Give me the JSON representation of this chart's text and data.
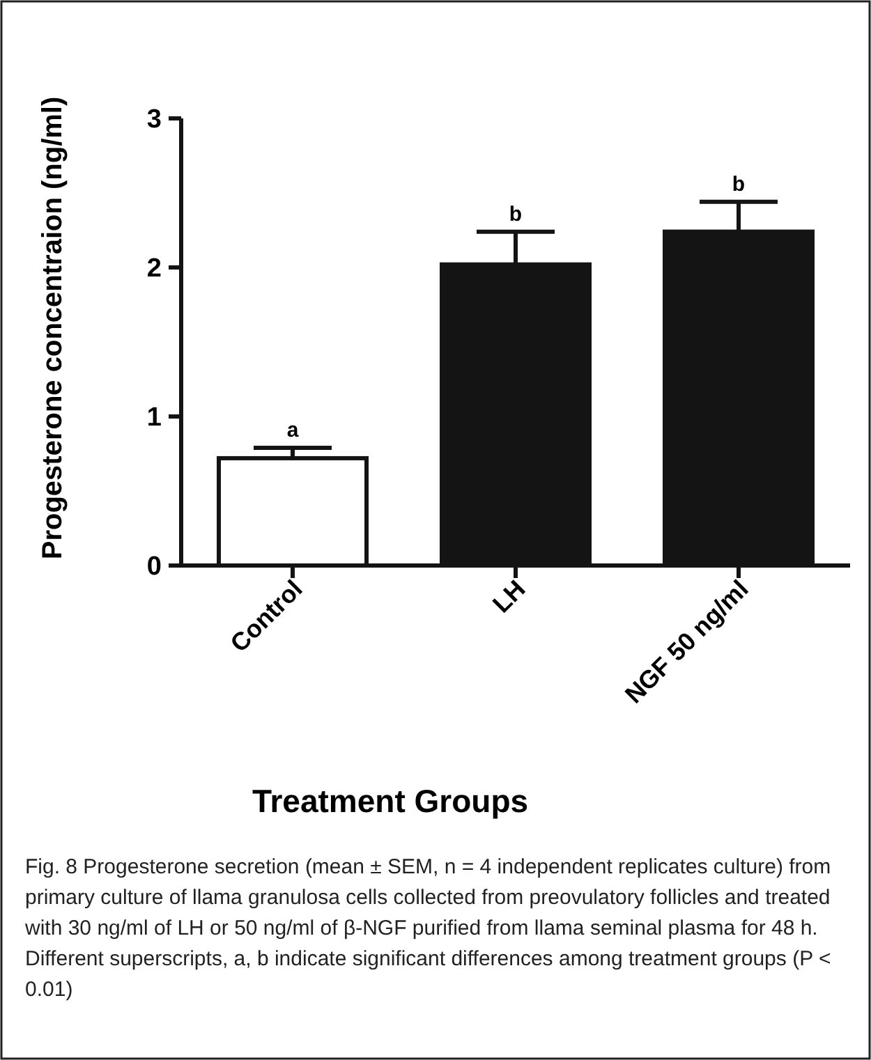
{
  "chart_data": {
    "type": "bar",
    "ylabel": "Progesterone concentraion (ng/ml)",
    "xlabel": "Treatment Groups",
    "categories": [
      "Control",
      "LH",
      "NGF 50 ng/ml"
    ],
    "values": [
      0.72,
      2.02,
      2.24
    ],
    "errors": [
      0.07,
      0.22,
      0.2
    ],
    "colors": [
      "#ffffff",
      "#141414",
      "#141414"
    ],
    "ylim": [
      0,
      3
    ],
    "yticks": [
      0,
      1,
      2,
      3
    ],
    "annotations": [
      "a",
      "b",
      "b",
      "Fig. 8 Progesterone secretion (mean ± SEM, n = 4 independent replicates culture) from primary culture of llama granulosa cells collected from preovulatory follicles and treated with 30 ng/ml of LH or 50 ng/ml of β-NGF purified from llama seminal plasma for 48 h. Different superscripts, a, b indicate significant differences among treatment groups (P < 0.01)"
    ]
  }
}
